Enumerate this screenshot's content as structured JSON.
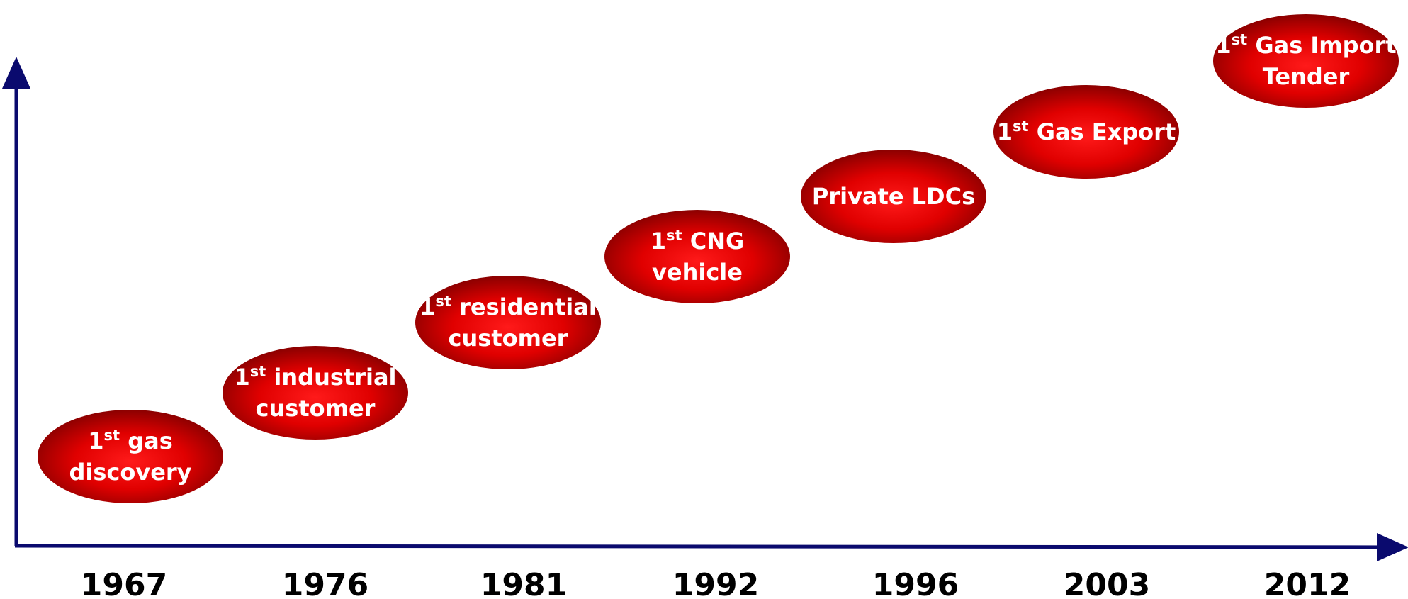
{
  "events": [
    {
      "year": "1967",
      "lines": [
        {
          "pre": "1",
          "sup": "st",
          "post": " gas"
        },
        "discovery"
      ]
    },
    {
      "year": "1976",
      "lines": [
        {
          "pre": "1",
          "sup": "st",
          "post": " industrial"
        },
        "customer"
      ]
    },
    {
      "year": "1981",
      "lines": [
        {
          "pre": "1",
          "sup": "st",
          "post": " residential"
        },
        "customer"
      ]
    },
    {
      "year": "1992",
      "lines": [
        {
          "pre": "1",
          "sup": "st",
          "post": " CNG"
        },
        "vehicle"
      ]
    },
    {
      "year": "1996",
      "lines": [
        "Private LDCs"
      ]
    },
    {
      "year": "2003",
      "lines": [
        {
          "pre": "1",
          "sup": "st",
          "post": " Gas Export"
        }
      ]
    },
    {
      "year": "2012",
      "lines": [
        {
          "pre": "1",
          "sup": "st",
          "post": " Gas Import"
        },
        "Tender"
      ]
    }
  ]
}
